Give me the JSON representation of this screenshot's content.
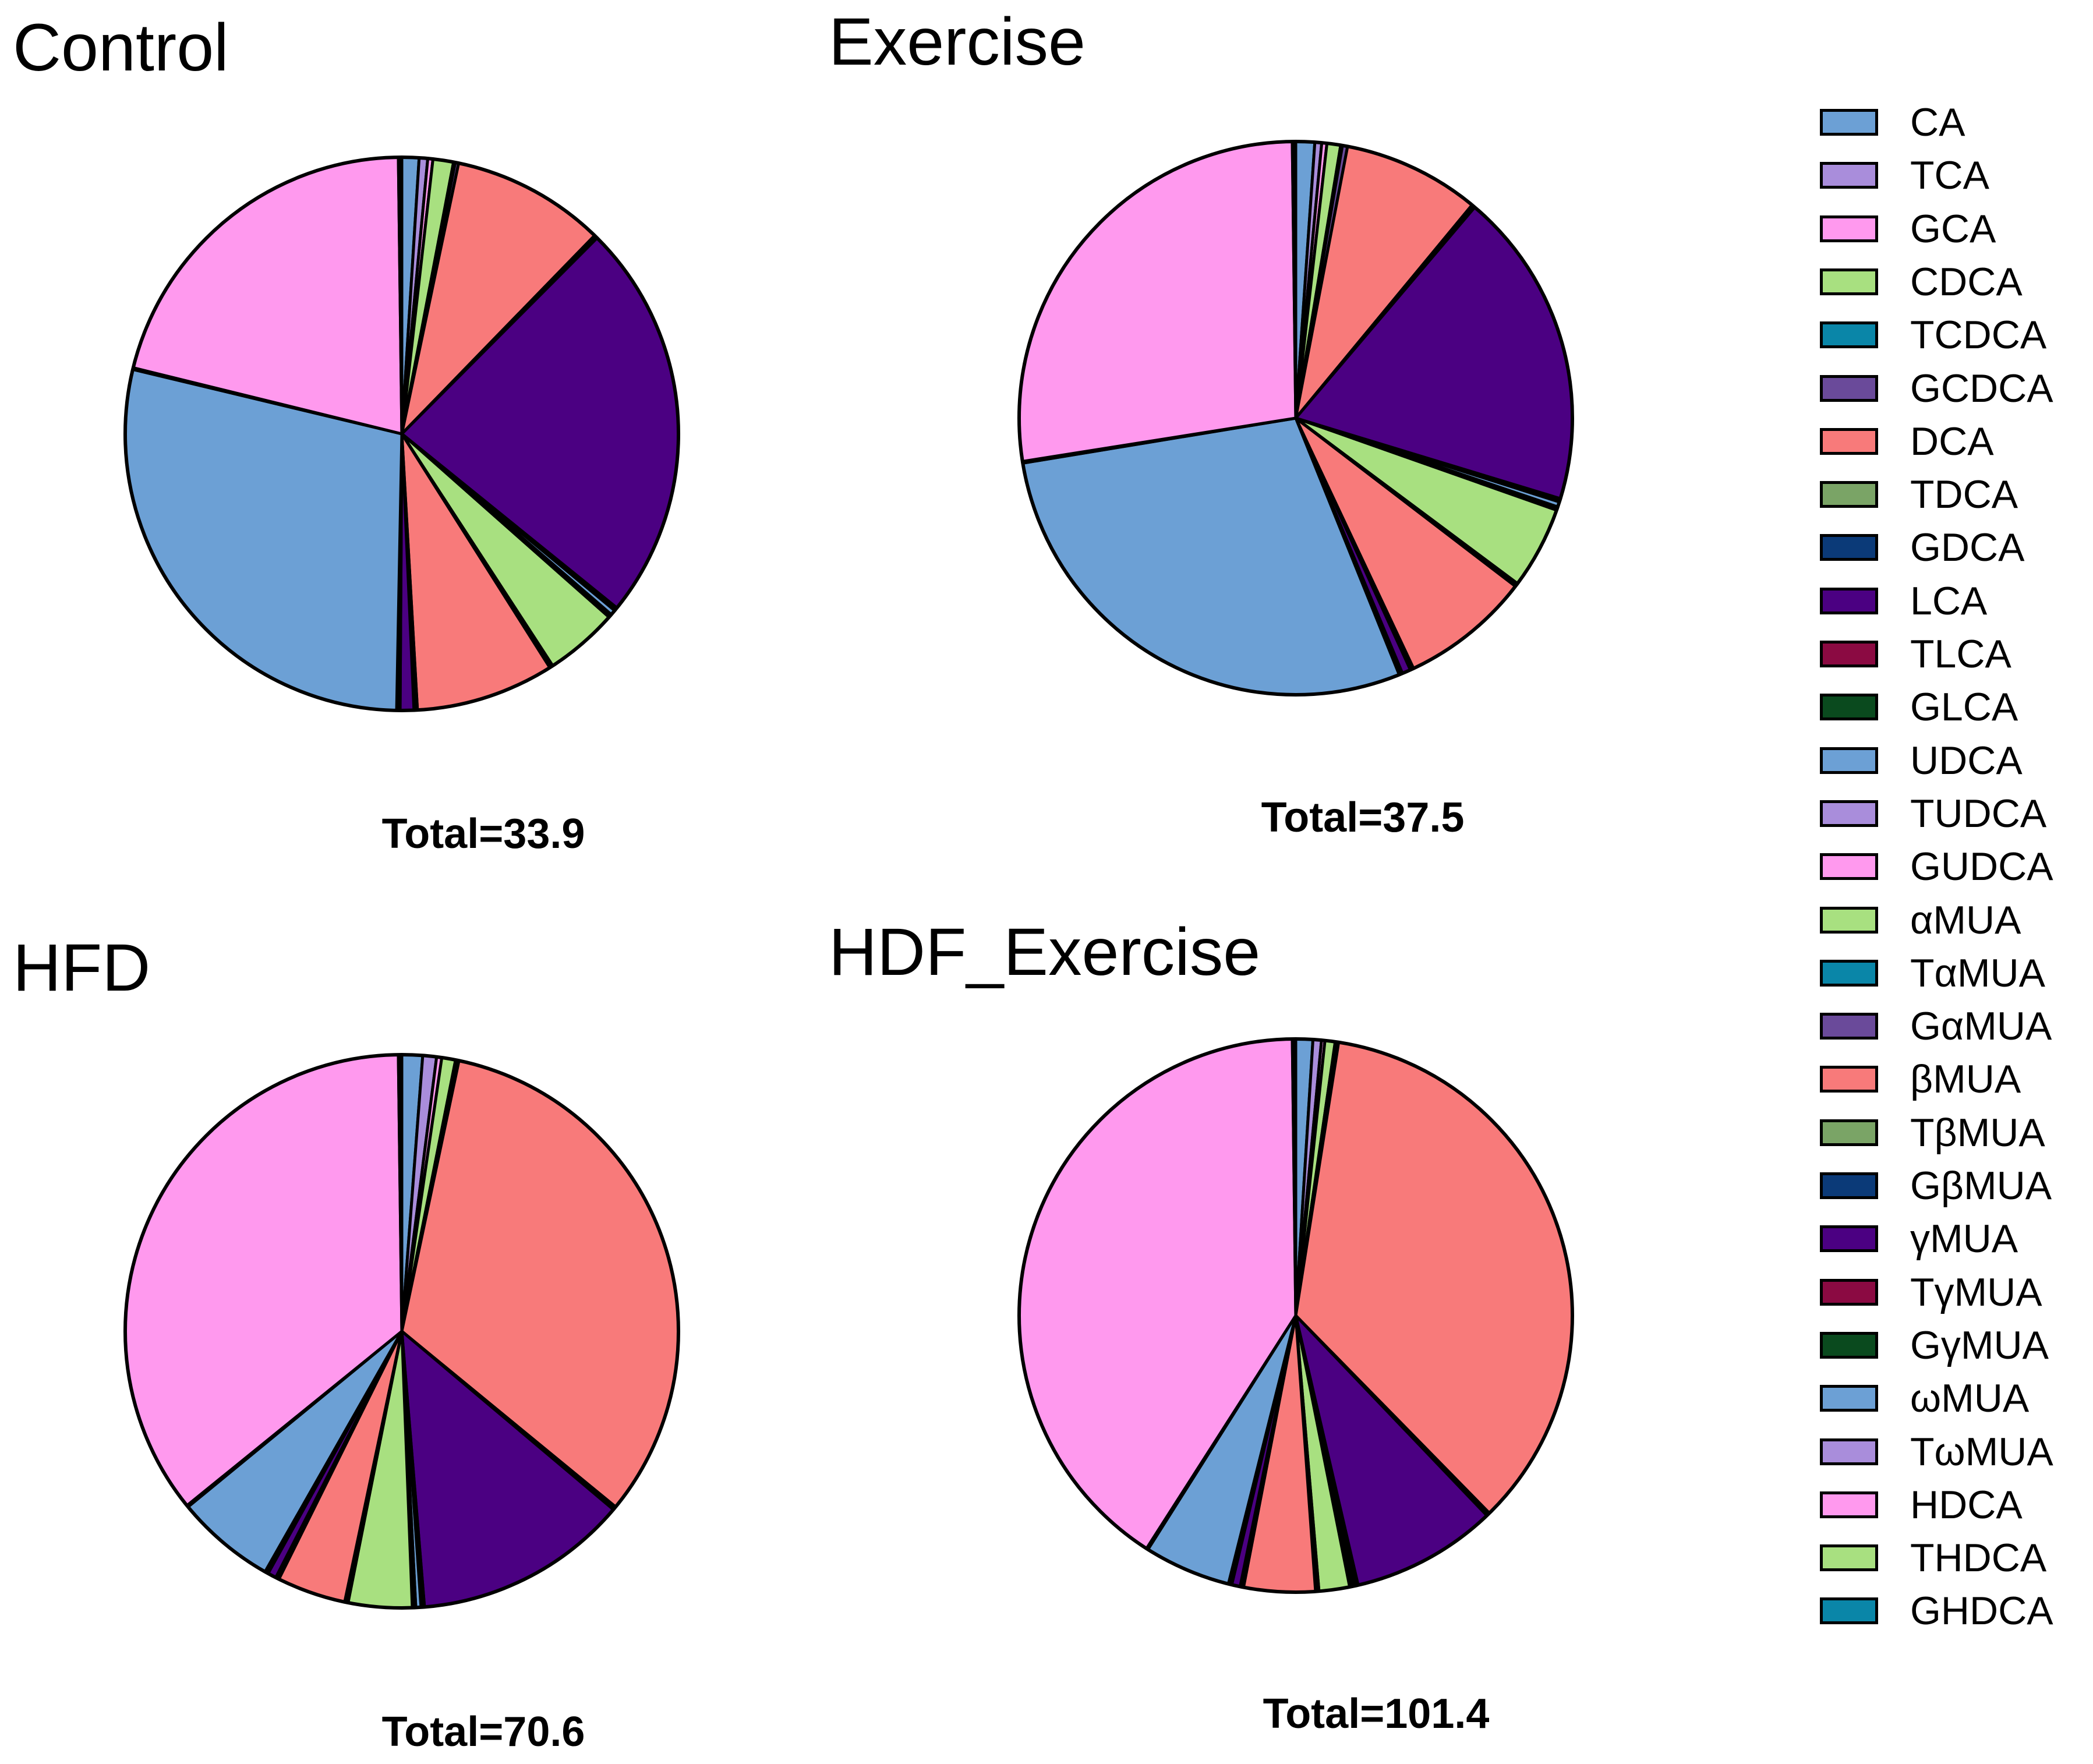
{
  "chart_data": [
    {
      "type": "pie",
      "title": "Control",
      "total_label": "Total=33.9",
      "start_angle": "12 o'clock",
      "direction": "clockwise",
      "slices": [
        {
          "label": "CA",
          "value": 1.0
        },
        {
          "label": "TCA",
          "value": 0.5
        },
        {
          "label": "GCA",
          "value": 0.3
        },
        {
          "label": "CDCA",
          "value": 1.2
        },
        {
          "label": "TCDCA",
          "value": 0.1
        },
        {
          "label": "GCDCA",
          "value": 0.2
        },
        {
          "label": "DCA",
          "value": 9.0
        },
        {
          "label": "TDCA",
          "value": 0.1
        },
        {
          "label": "GDCA",
          "value": 0.1
        },
        {
          "label": "LCA",
          "value": 23.4
        },
        {
          "label": "TLCA",
          "value": 0.1
        },
        {
          "label": "GLCA",
          "value": 0.1
        },
        {
          "label": "UDCA",
          "value": 0.3
        },
        {
          "label": "TUDCA",
          "value": 0.1
        },
        {
          "label": "GUDCA",
          "value": 0.1
        },
        {
          "label": "αMUA",
          "value": 4.3
        },
        {
          "label": "TαMUA",
          "value": 0.1
        },
        {
          "label": "GαMUA",
          "value": 0.1
        },
        {
          "label": "βMUA",
          "value": 8.1
        },
        {
          "label": "TβMUA",
          "value": 0.1
        },
        {
          "label": "GβMUA",
          "value": 0.1
        },
        {
          "label": "γMUA",
          "value": 0.8
        },
        {
          "label": "TγMUA",
          "value": 0.1
        },
        {
          "label": "GγMUA",
          "value": 0.1
        },
        {
          "label": "ωMUA",
          "value": 28.5
        },
        {
          "label": "TωMUA",
          "value": 0.1
        },
        {
          "label": "HDCA",
          "value": 21.0
        },
        {
          "label": "THDCA",
          "value": 0.1
        },
        {
          "label": "GHDCA",
          "value": 0.1
        }
      ]
    },
    {
      "type": "pie",
      "title": "Exercise",
      "total_label": "Total=37.5",
      "start_angle": "12 o'clock",
      "direction": "clockwise",
      "slices": [
        {
          "label": "CA",
          "value": 1.1
        },
        {
          "label": "TCA",
          "value": 0.4
        },
        {
          "label": "GCA",
          "value": 0.3
        },
        {
          "label": "CDCA",
          "value": 0.8
        },
        {
          "label": "TCDCA",
          "value": 0.1
        },
        {
          "label": "GCDCA",
          "value": 0.3
        },
        {
          "label": "DCA",
          "value": 8.0
        },
        {
          "label": "TDCA",
          "value": 0.1
        },
        {
          "label": "GDCA",
          "value": 0.1
        },
        {
          "label": "LCA",
          "value": 18.5
        },
        {
          "label": "TLCA",
          "value": 0.1
        },
        {
          "label": "GLCA",
          "value": 0.1
        },
        {
          "label": "UDCA",
          "value": 0.3
        },
        {
          "label": "TUDCA",
          "value": 0.1
        },
        {
          "label": "GUDCA",
          "value": 0.1
        },
        {
          "label": "αMUA",
          "value": 4.8
        },
        {
          "label": "TαMUA",
          "value": 0.1
        },
        {
          "label": "GαMUA",
          "value": 0.1
        },
        {
          "label": "βMUA",
          "value": 7.6
        },
        {
          "label": "TβMUA",
          "value": 0.1
        },
        {
          "label": "GβMUA",
          "value": 0.1
        },
        {
          "label": "γMUA",
          "value": 0.5
        },
        {
          "label": "TγMUA",
          "value": 0.1
        },
        {
          "label": "GγMUA",
          "value": 0.1
        },
        {
          "label": "ωMUA",
          "value": 28.5
        },
        {
          "label": "TωMUA",
          "value": 0.1
        },
        {
          "label": "HDCA",
          "value": 27.3
        },
        {
          "label": "THDCA",
          "value": 0.1
        },
        {
          "label": "GHDCA",
          "value": 0.1
        }
      ]
    },
    {
      "type": "pie",
      "title": "HFD",
      "total_label": "Total=70.6",
      "start_angle": "12 o'clock",
      "direction": "clockwise",
      "slices": [
        {
          "label": "CA",
          "value": 1.2
        },
        {
          "label": "TCA",
          "value": 0.8
        },
        {
          "label": "GCA",
          "value": 0.3
        },
        {
          "label": "CDCA",
          "value": 0.8
        },
        {
          "label": "TCDCA",
          "value": 0.1
        },
        {
          "label": "GCDCA",
          "value": 0.1
        },
        {
          "label": "DCA",
          "value": 32.5
        },
        {
          "label": "TDCA",
          "value": 0.1
        },
        {
          "label": "GDCA",
          "value": 0.1
        },
        {
          "label": "LCA",
          "value": 12.5
        },
        {
          "label": "TLCA",
          "value": 0.1
        },
        {
          "label": "GLCA",
          "value": 0.1
        },
        {
          "label": "UDCA",
          "value": 0.3
        },
        {
          "label": "TUDCA",
          "value": 0.1
        },
        {
          "label": "GUDCA",
          "value": 0.1
        },
        {
          "label": "αMUA",
          "value": 3.7
        },
        {
          "label": "TαMUA",
          "value": 0.1
        },
        {
          "label": "GαMUA",
          "value": 0.1
        },
        {
          "label": "βMUA",
          "value": 4.0
        },
        {
          "label": "TβMUA",
          "value": 0.1
        },
        {
          "label": "GβMUA",
          "value": 0.1
        },
        {
          "label": "γMUA",
          "value": 0.5
        },
        {
          "label": "TγMUA",
          "value": 0.1
        },
        {
          "label": "GγMUA",
          "value": 0.1
        },
        {
          "label": "ωMUA",
          "value": 5.8
        },
        {
          "label": "TωMUA",
          "value": 0.1
        },
        {
          "label": "HDCA",
          "value": 35.5
        },
        {
          "label": "THDCA",
          "value": 0.1
        },
        {
          "label": "GHDCA",
          "value": 0.1
        }
      ]
    },
    {
      "type": "pie",
      "title": "HDF_Exercise",
      "total_label": "Total=101.4",
      "start_angle": "12 o'clock",
      "direction": "clockwise",
      "slices": [
        {
          "label": "CA",
          "value": 1.0
        },
        {
          "label": "TCA",
          "value": 0.5
        },
        {
          "label": "GCA",
          "value": 0.2
        },
        {
          "label": "CDCA",
          "value": 0.6
        },
        {
          "label": "TCDCA",
          "value": 0.1
        },
        {
          "label": "GCDCA",
          "value": 0.1
        },
        {
          "label": "DCA",
          "value": 35.5
        },
        {
          "label": "TDCA",
          "value": 0.1
        },
        {
          "label": "GDCA",
          "value": 0.1
        },
        {
          "label": "LCA",
          "value": 8.6
        },
        {
          "label": "TLCA",
          "value": 0.1
        },
        {
          "label": "GLCA",
          "value": 0.1
        },
        {
          "label": "UDCA",
          "value": 0.1
        },
        {
          "label": "TUDCA",
          "value": 0.1
        },
        {
          "label": "GUDCA",
          "value": 0.1
        },
        {
          "label": "αMUA",
          "value": 1.8
        },
        {
          "label": "TαMUA",
          "value": 0.1
        },
        {
          "label": "GαMUA",
          "value": 0.1
        },
        {
          "label": "βMUA",
          "value": 4.2
        },
        {
          "label": "TβMUA",
          "value": 0.1
        },
        {
          "label": "GβMUA",
          "value": 0.1
        },
        {
          "label": "γMUA",
          "value": 0.5
        },
        {
          "label": "TγMUA",
          "value": 0.1
        },
        {
          "label": "GγMUA",
          "value": 0.1
        },
        {
          "label": "ωMUA",
          "value": 5.1
        },
        {
          "label": "TωMUA",
          "value": 0.1
        },
        {
          "label": "HDCA",
          "value": 41.1
        },
        {
          "label": "THDCA",
          "value": 0.1
        },
        {
          "label": "GHDCA",
          "value": 0.1
        }
      ]
    }
  ],
  "legend": {
    "placement": "right",
    "items": [
      {
        "label": "CA",
        "color": "#6CA0D5"
      },
      {
        "label": "TCA",
        "color": "#A98DDB"
      },
      {
        "label": "GCA",
        "color": "#FF99EE"
      },
      {
        "label": "CDCA",
        "color": "#A8E080"
      },
      {
        "label": "TCDCA",
        "color": "#0A86A8"
      },
      {
        "label": "GCDCA",
        "color": "#6A4A9A"
      },
      {
        "label": "DCA",
        "color": "#F87A7A"
      },
      {
        "label": "TDCA",
        "color": "#7AA466"
      },
      {
        "label": "GDCA",
        "color": "#0B3A78"
      },
      {
        "label": "LCA",
        "color": "#4B0082"
      },
      {
        "label": "TLCA",
        "color": "#8B0A42"
      },
      {
        "label": "GLCA",
        "color": "#0A4A1E"
      },
      {
        "label": "UDCA",
        "color": "#6CA0D5"
      },
      {
        "label": "TUDCA",
        "color": "#A98DDB"
      },
      {
        "label": "GUDCA",
        "color": "#FF99EE"
      },
      {
        "label": "αMUA",
        "color": "#A8E080"
      },
      {
        "label": "TαMUA",
        "color": "#0A86A8"
      },
      {
        "label": "GαMUA",
        "color": "#6A4A9A"
      },
      {
        "label": "βMUA",
        "color": "#F87A7A"
      },
      {
        "label": "TβMUA",
        "color": "#7AA466"
      },
      {
        "label": "GβMUA",
        "color": "#0B3A78"
      },
      {
        "label": "γMUA",
        "color": "#4B0082"
      },
      {
        "label": "TγMUA",
        "color": "#8B0A42"
      },
      {
        "label": "GγMUA",
        "color": "#0A4A1E"
      },
      {
        "label": "ωMUA",
        "color": "#6CA0D5"
      },
      {
        "label": "TωMUA",
        "color": "#A98DDB"
      },
      {
        "label": "HDCA",
        "color": "#FF99EE"
      },
      {
        "label": "THDCA",
        "color": "#A8E080"
      },
      {
        "label": "GHDCA",
        "color": "#0A86A8"
      }
    ]
  }
}
